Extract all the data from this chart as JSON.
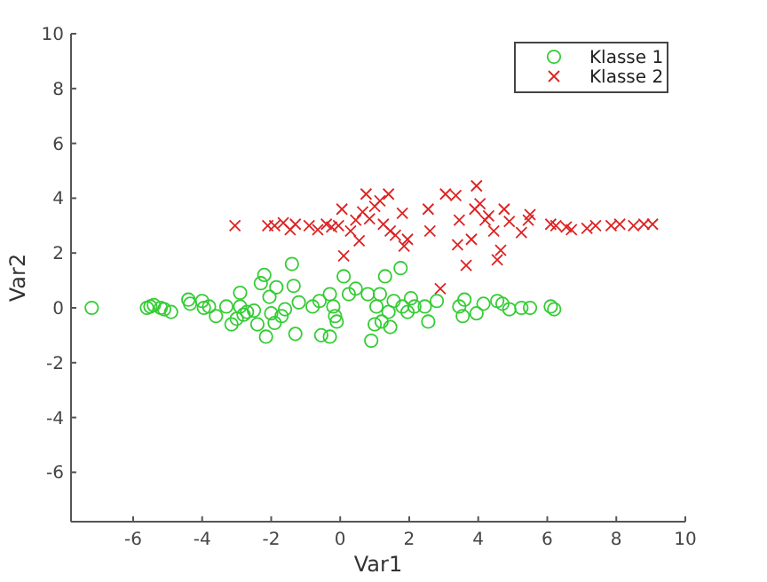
{
  "chart_data": {
    "type": "scatter",
    "xlabel": "Var1",
    "ylabel": "Var2",
    "xlim": [
      -7.8,
      10
    ],
    "ylim": [
      -7.8,
      10
    ],
    "xticks": [
      -6,
      -4,
      -2,
      0,
      2,
      4,
      6,
      8,
      10
    ],
    "yticks": [
      -6,
      -4,
      -2,
      0,
      2,
      4,
      6,
      8,
      10
    ],
    "grid": false,
    "legend": "top right",
    "series": [
      {
        "name": "Klasse 1",
        "color": "#33cc33",
        "marker": "circle",
        "x": [
          -7.2,
          -5.6,
          -5.5,
          -5.4,
          -5.2,
          -5.1,
          -4.9,
          -4.4,
          -4.35,
          -4.0,
          -3.95,
          -3.8,
          -3.6,
          -3.3,
          -3.15,
          -3.0,
          -2.9,
          -2.9,
          -2.8,
          -2.7,
          -2.5,
          -2.4,
          -2.3,
          -2.2,
          -2.15,
          -2.05,
          -2.0,
          -1.9,
          -1.85,
          -1.7,
          -1.6,
          -1.4,
          -1.35,
          -1.3,
          -1.2,
          -0.8,
          -0.6,
          -0.55,
          -0.3,
          -0.3,
          -0.2,
          -0.15,
          -0.1,
          0.1,
          0.25,
          0.45,
          0.8,
          0.9,
          1.0,
          1.05,
          1.15,
          1.2,
          1.3,
          1.4,
          1.45,
          1.55,
          1.75,
          1.8,
          1.95,
          2.05,
          2.15,
          2.45,
          2.55,
          2.8,
          3.45,
          3.55,
          3.6,
          3.95,
          4.15,
          4.55,
          4.7,
          4.9,
          5.25,
          5.5,
          6.1,
          6.2
        ],
        "values": [
          0,
          0,
          0.05,
          0.1,
          0,
          -0.05,
          -0.15,
          0.3,
          0.15,
          0.25,
          0,
          0.05,
          -0.3,
          0.05,
          -0.6,
          -0.4,
          0.55,
          0.05,
          -0.25,
          -0.15,
          -0.1,
          -0.6,
          0.9,
          1.2,
          -1.05,
          0.4,
          -0.2,
          -0.55,
          0.75,
          -0.3,
          -0.05,
          1.6,
          0.8,
          -0.95,
          0.2,
          0.05,
          0.25,
          -1.0,
          -1.05,
          0.5,
          0.05,
          -0.3,
          -0.5,
          1.15,
          0.5,
          0.7,
          0.5,
          -1.2,
          -0.6,
          0.05,
          0.5,
          -0.5,
          1.15,
          -0.15,
          -0.7,
          0.25,
          1.45,
          0.05,
          -0.15,
          0.35,
          0.05,
          0.05,
          -0.5,
          0.25,
          0.05,
          -0.3,
          0.3,
          -0.2,
          0.15,
          0.25,
          0.15,
          -0.05,
          0,
          0,
          0.05,
          -0.05
        ]
      },
      {
        "name": "Klasse 2",
        "color": "#dd2222",
        "marker": "cross",
        "x": [
          -3.05,
          -2.1,
          -1.9,
          -1.65,
          -1.45,
          -1.3,
          -0.9,
          -0.65,
          -0.4,
          -0.25,
          -0.05,
          0.05,
          0.1,
          0.3,
          0.45,
          0.55,
          0.65,
          0.75,
          0.85,
          1.0,
          1.15,
          1.25,
          1.4,
          1.45,
          1.6,
          1.8,
          1.85,
          1.95,
          2.55,
          2.6,
          2.9,
          3.05,
          3.35,
          3.45,
          3.4,
          3.65,
          3.8,
          3.9,
          3.95,
          4.05,
          4.2,
          4.3,
          4.45,
          4.55,
          4.65,
          4.75,
          4.9,
          5.25,
          5.45,
          5.5,
          6.1,
          6.25,
          6.55,
          6.7,
          7.15,
          7.4,
          7.85,
          8.1,
          8.5,
          8.8,
          9.05
        ],
        "values": [
          3.0,
          3.0,
          3.0,
          3.1,
          2.85,
          3.05,
          3.0,
          2.85,
          3.05,
          2.95,
          3.0,
          3.6,
          1.9,
          2.8,
          3.2,
          2.45,
          3.5,
          4.15,
          3.25,
          3.7,
          3.9,
          3.05,
          4.15,
          2.8,
          2.65,
          3.45,
          2.25,
          2.5,
          3.6,
          2.8,
          0.7,
          4.15,
          4.1,
          3.2,
          2.3,
          1.55,
          2.5,
          3.6,
          4.45,
          3.8,
          3.2,
          3.35,
          2.8,
          1.75,
          2.1,
          3.6,
          3.15,
          2.75,
          3.2,
          3.4,
          3.05,
          3.0,
          2.95,
          2.85,
          2.9,
          3.0,
          3.0,
          3.05,
          3.0,
          3.05,
          3.05
        ]
      }
    ]
  }
}
